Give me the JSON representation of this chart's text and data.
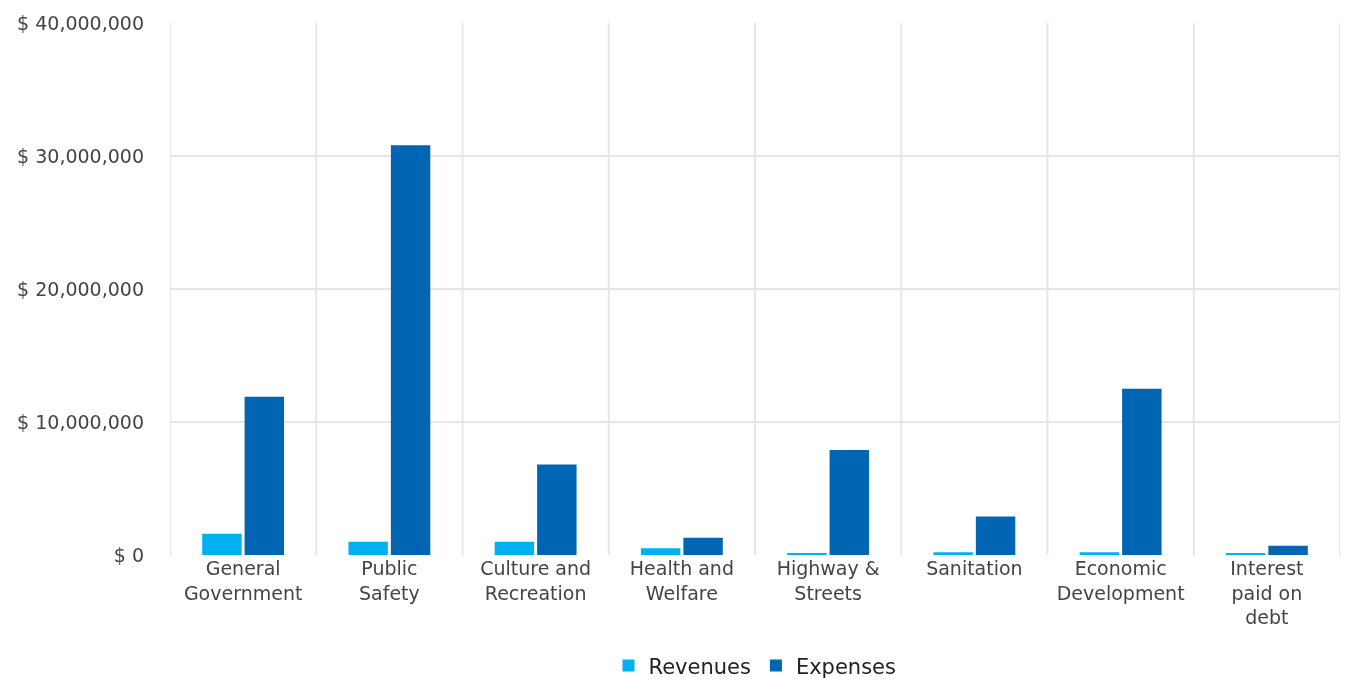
{
  "chart_data": {
    "type": "bar",
    "categories": [
      "General Government",
      "Public Safety",
      "Culture and Recreation",
      "Health and Welfare",
      "Highway & Streets",
      "Sanitation",
      "Economic Development",
      "Interest paid on debt"
    ],
    "series": [
      {
        "name": "Revenues",
        "color": "#00b0f0",
        "values": [
          1600000,
          1000000,
          1000000,
          500000,
          150000,
          200000,
          200000,
          100000
        ]
      },
      {
        "name": "Expenses",
        "color": "#0066b3",
        "values": [
          11900000,
          30800000,
          6800000,
          1300000,
          7900000,
          2900000,
          12500000,
          700000
        ]
      }
    ],
    "ylim": [
      0,
      40000000
    ],
    "yticks": [
      {
        "value": 0,
        "label": "$ 0"
      },
      {
        "value": 10000000,
        "label": "$ 10,000,000"
      },
      {
        "value": 20000000,
        "label": "$ 20,000,000"
      },
      {
        "value": 30000000,
        "label": "$ 30,000,000"
      },
      {
        "value": 40000000,
        "label": "$ 40,000,000"
      }
    ],
    "grid": true,
    "legend": "bottom"
  }
}
